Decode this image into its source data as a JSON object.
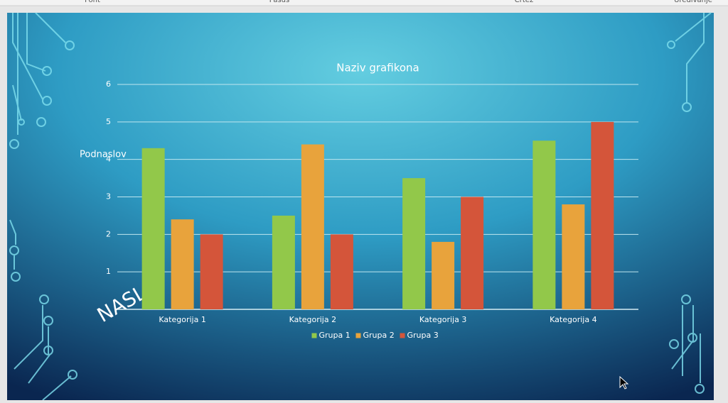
{
  "ribbon": {
    "groups": [
      "Font",
      "Pasus",
      "Crtež",
      "Uređivanje"
    ]
  },
  "slide": {
    "subtitle": "Podnaslov",
    "title": "NASLO"
  },
  "chart_data": {
    "type": "bar",
    "title": "Naziv grafikona",
    "categories": [
      "Kategorija 1",
      "Kategorija 2",
      "Kategorija 3",
      "Kategorija 4"
    ],
    "series": [
      {
        "name": "Grupa 1",
        "color": "#92c84a",
        "values": [
          4.3,
          2.5,
          3.5,
          4.5
        ]
      },
      {
        "name": "Grupa 2",
        "color": "#e8a33c",
        "values": [
          2.4,
          4.4,
          1.8,
          2.8
        ]
      },
      {
        "name": "Grupa 3",
        "color": "#d4553a",
        "values": [
          2,
          2,
          3,
          5
        ]
      }
    ],
    "ylim": [
      0,
      6
    ],
    "yticks": [
      1,
      2,
      3,
      4,
      5,
      6
    ],
    "grid": true,
    "legend": "bottom"
  }
}
